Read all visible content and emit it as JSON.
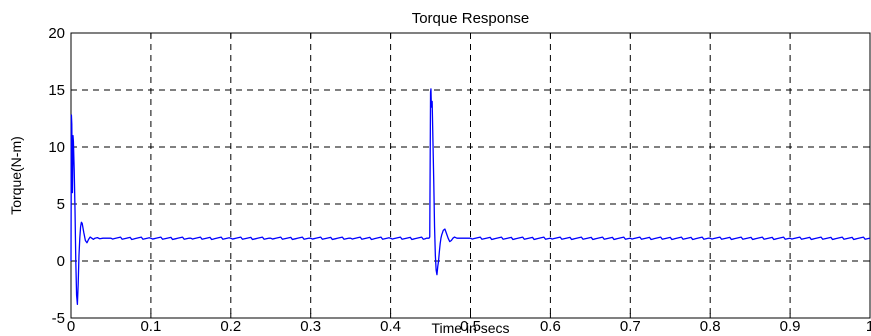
{
  "chart_data": {
    "type": "line",
    "title": "Torque Response",
    "xlabel": "Time in secs",
    "ylabel": "Torque(N-m)",
    "xlim": [
      0,
      1
    ],
    "ylim": [
      -5,
      20
    ],
    "grid": true,
    "x_ticks": [
      0,
      0.1,
      0.2,
      0.3,
      0.4,
      0.5,
      0.6,
      0.7,
      0.8,
      0.9,
      1
    ],
    "x_tick_labels": [
      "0",
      "0.1",
      "0.2",
      "0.3",
      "0.4",
      "0.5",
      "0.6",
      "0.7",
      "0.8",
      "0.9",
      "1"
    ],
    "y_ticks": [
      -5,
      0,
      5,
      10,
      15,
      20
    ],
    "y_tick_labels": [
      "-5",
      "0",
      "5",
      "10",
      "15",
      "20"
    ],
    "line_color": "#0000ff",
    "series": [
      {
        "x": [
          0,
          0.0005,
          0.001,
          0.0018,
          0.0025,
          0.003,
          0.004,
          0.005,
          0.006,
          0.007,
          0.008,
          0.009,
          0.01,
          0.011,
          0.012,
          0.013,
          0.014,
          0.016,
          0.018,
          0.02,
          0.022,
          0.024,
          0.026,
          0.028,
          0.03,
          0.033,
          0.036,
          0.04,
          0.05,
          0.1,
          0.15,
          0.2,
          0.25,
          0.3,
          0.35,
          0.4,
          0.445,
          0.448,
          0.449,
          0.45,
          0.4505,
          0.451,
          0.452,
          0.453,
          0.454,
          0.455,
          0.456,
          0.457,
          0.458,
          0.459,
          0.46,
          0.461,
          0.462,
          0.463,
          0.464,
          0.466,
          0.468,
          0.47,
          0.472,
          0.474,
          0.476,
          0.478,
          0.48,
          0.483,
          0.486,
          0.49,
          0.5,
          0.6,
          0.7,
          0.8,
          0.9,
          1.0
        ],
        "y": [
          0,
          12.8,
          12.0,
          6.0,
          11.0,
          10.5,
          8.0,
          4.5,
          0,
          -3.0,
          -3.8,
          -2.0,
          0.5,
          2.0,
          3.0,
          3.4,
          3.3,
          2.5,
          1.8,
          1.6,
          1.9,
          2.1,
          2.0,
          1.9,
          2.0,
          2.05,
          1.95,
          2.0,
          2.0,
          2.0,
          2.0,
          2.0,
          2.0,
          2.0,
          2.0,
          2.0,
          2.0,
          2.0,
          2.1,
          14.8,
          15.1,
          13.5,
          14.0,
          10.5,
          7.0,
          3.0,
          0.5,
          -0.8,
          -1.2,
          -0.5,
          0.0,
          0.8,
          1.5,
          2.0,
          2.3,
          2.7,
          2.8,
          2.4,
          2.0,
          1.7,
          1.8,
          2.0,
          2.1,
          2.0,
          2.0,
          2.0,
          2.0,
          2.0,
          2.0,
          2.0,
          2.0,
          2.0
        ]
      }
    ]
  }
}
